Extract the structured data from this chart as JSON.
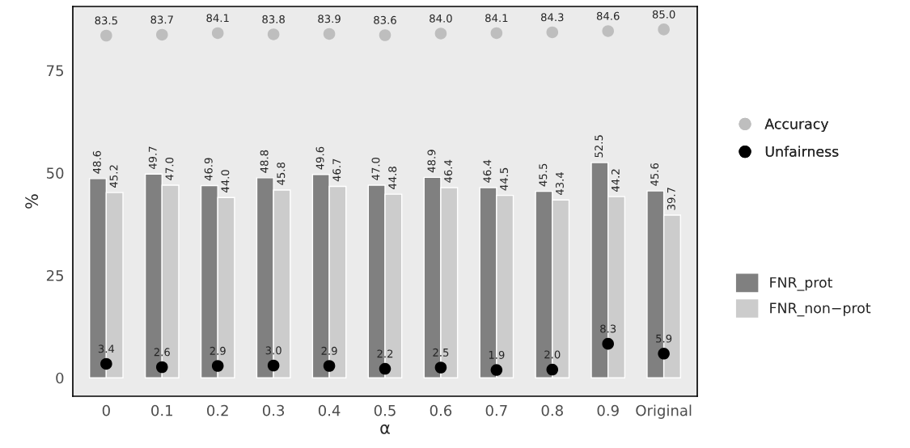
{
  "chart_data": {
    "type": "bar",
    "xlabel": "α",
    "ylabel": "%",
    "categories": [
      "0",
      "0.1",
      "0.2",
      "0.3",
      "0.4",
      "0.5",
      "0.6",
      "0.7",
      "0.8",
      "0.9",
      "Original"
    ],
    "series": [
      {
        "name": "FNR_prot",
        "color": "#808080",
        "values": [
          48.6,
          49.7,
          46.9,
          48.8,
          49.6,
          47.0,
          48.9,
          46.4,
          45.5,
          52.5,
          45.6
        ],
        "value_labels": [
          "48.6",
          "49.7",
          "46.9",
          "48.8",
          "49.6",
          "47.0",
          "48.9",
          "46.4",
          "45.5",
          "52.5",
          "45.6"
        ]
      },
      {
        "name": "FNR_non−prot",
        "color": "#cccccc",
        "values": [
          45.2,
          47.0,
          44.0,
          45.8,
          46.7,
          44.8,
          46.4,
          44.5,
          43.4,
          44.2,
          39.7
        ],
        "value_labels": [
          "45.2",
          "47.0",
          "44.0",
          "45.8",
          "46.7",
          "44.8",
          "46.4",
          "44.5",
          "43.4",
          "44.2",
          "39.7"
        ]
      },
      {
        "name": "Accuracy",
        "type": "scatter",
        "color": "#bebebe",
        "values": [
          83.5,
          83.7,
          84.1,
          83.8,
          83.9,
          83.6,
          84.0,
          84.1,
          84.3,
          84.6,
          85.0
        ],
        "value_labels": [
          "83.5",
          "83.7",
          "84.1",
          "83.8",
          "83.9",
          "83.6",
          "84.0",
          "84.1",
          "84.3",
          "84.6",
          "85.0"
        ]
      },
      {
        "name": "Unfairness",
        "type": "scatter",
        "color": "#000000",
        "values": [
          3.4,
          2.6,
          2.9,
          3.0,
          2.9,
          2.2,
          2.5,
          1.9,
          2.0,
          8.3,
          5.9
        ],
        "value_labels": [
          "3.4",
          "2.6",
          "2.9",
          "3.0",
          "2.9",
          "2.2",
          "2.5",
          "1.9",
          "2.0",
          "8.3",
          "5.9"
        ]
      }
    ],
    "ylim": [
      -4.5,
      90.6
    ],
    "yticks": [
      0,
      25,
      50,
      75
    ],
    "grid": false,
    "legend": "right",
    "marker": "circle"
  }
}
